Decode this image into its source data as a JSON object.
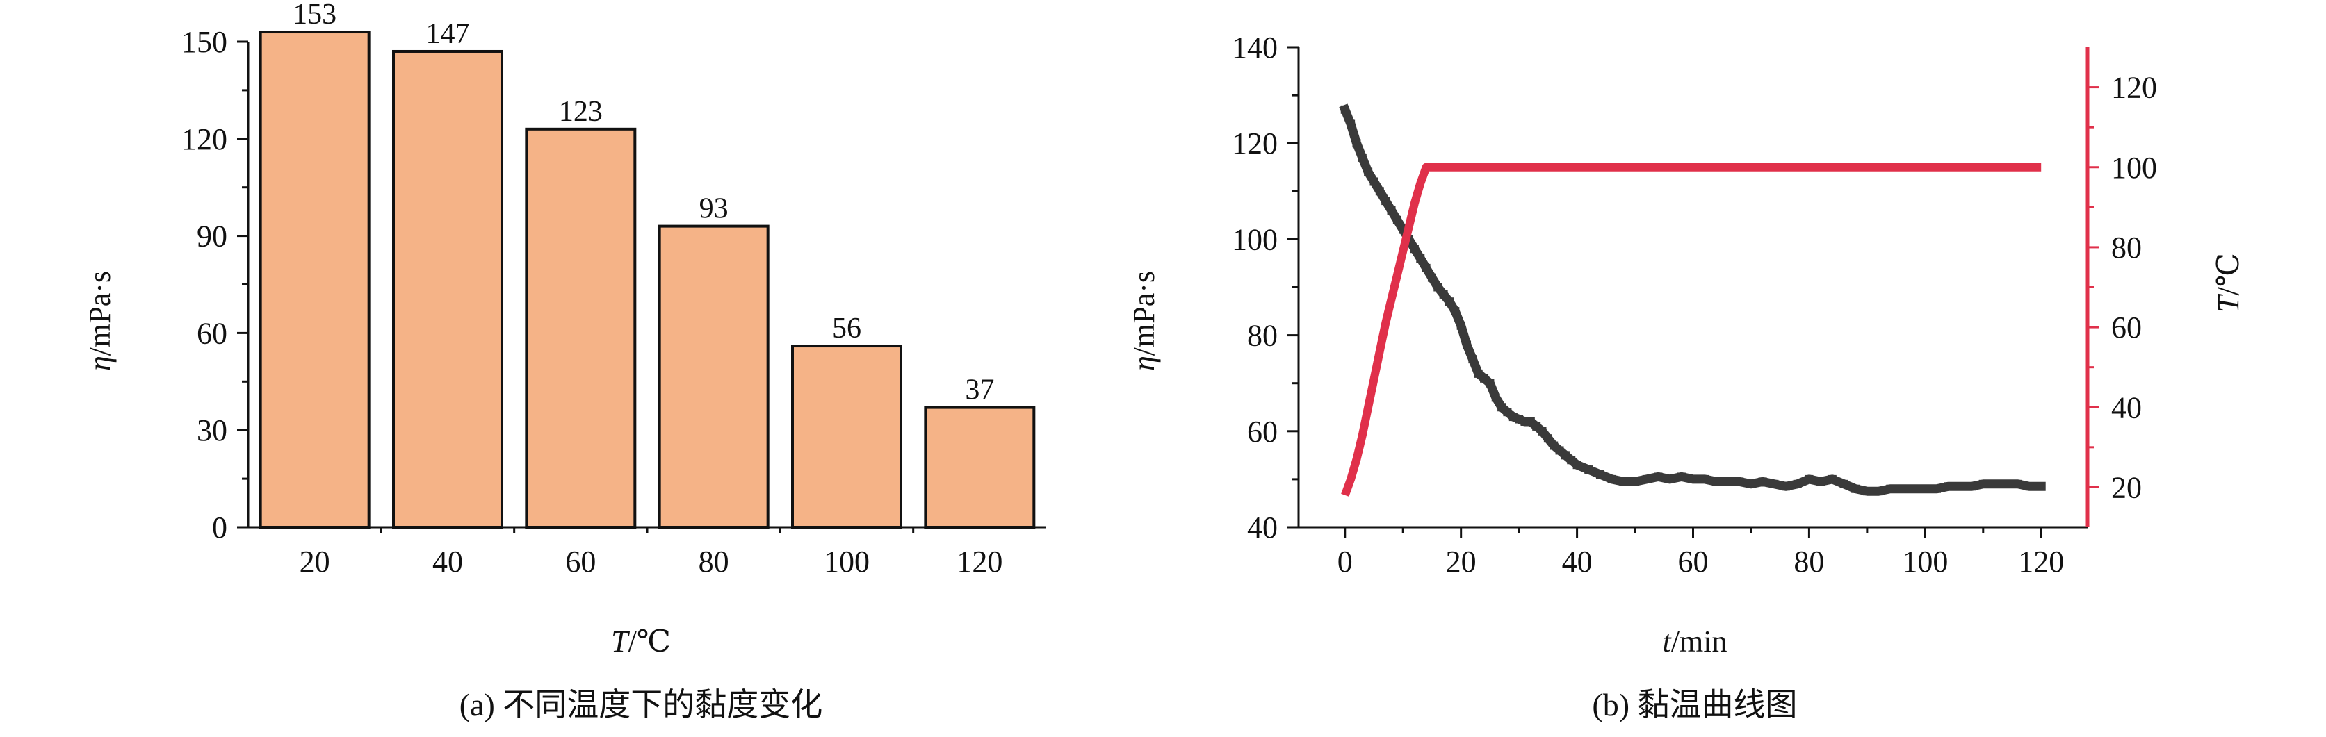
{
  "chart_data": [
    {
      "type": "bar",
      "caption": "(a) 不同温度下的黏度变化",
      "xlabel_var": "T",
      "xlabel_unit": "/℃",
      "ylabel_var": "η",
      "ylabel_unit": "/mPa·s",
      "categories": [
        "20",
        "40",
        "60",
        "80",
        "100",
        "120"
      ],
      "values": [
        153,
        147,
        123,
        93,
        56,
        37
      ],
      "data_labels": [
        "153",
        "147",
        "123",
        "93",
        "56",
        "37"
      ],
      "ylim": [
        0,
        150
      ],
      "yticks": [
        "0",
        "30",
        "60",
        "90",
        "120",
        "150"
      ],
      "grid": false,
      "bar_color": "#F5B387",
      "bar_edge_color": "#111111"
    },
    {
      "type": "line",
      "caption": "(b) 黏温曲线图",
      "xlabel_var": "t",
      "xlabel_unit": "/min",
      "ylabel_var": "η",
      "ylabel_unit": "/mPa·s",
      "y2label_var": "T",
      "y2label_unit": "/℃",
      "xlim": [
        -8,
        128
      ],
      "xticks": [
        "0",
        "20",
        "40",
        "60",
        "80",
        "100",
        "120"
      ],
      "ylim": [
        40,
        140
      ],
      "yticks": [
        "40",
        "60",
        "80",
        "100",
        "120",
        "140"
      ],
      "y2lim": [
        10,
        130
      ],
      "y2ticks": [
        "20",
        "40",
        "60",
        "80",
        "100",
        "120"
      ],
      "grid": false,
      "series": [
        {
          "axis": "left",
          "color": "#3A3A3A",
          "x": [
            0,
            1,
            2,
            3,
            4,
            5,
            6,
            7,
            8,
            9,
            10,
            11,
            12,
            13,
            14,
            15,
            16,
            17,
            18,
            19,
            20,
            21,
            22,
            23,
            24,
            25,
            26,
            27,
            28,
            29,
            30,
            31,
            32,
            33,
            34,
            35,
            36,
            37,
            38,
            39,
            40,
            42,
            44,
            46,
            48,
            50,
            52,
            54,
            56,
            58,
            60,
            62,
            64,
            66,
            68,
            70,
            72,
            74,
            76,
            78,
            80,
            82,
            84,
            86,
            88,
            90,
            92,
            94,
            96,
            98,
            100,
            102,
            104,
            106,
            108,
            110,
            112,
            114,
            116,
            118,
            120
          ],
          "y": [
            127,
            124,
            120,
            117,
            114,
            112,
            110,
            108,
            106,
            104,
            102,
            100,
            98,
            96,
            94,
            92,
            90,
            88.5,
            87,
            85,
            82,
            78,
            75,
            72,
            71,
            70,
            67,
            65,
            64,
            63,
            62.5,
            62,
            62,
            61,
            60,
            58.5,
            57,
            56,
            55,
            54,
            53,
            52,
            51,
            50,
            49.5,
            49.5,
            50,
            50.5,
            50,
            50.5,
            50,
            50,
            49.5,
            49.5,
            49.5,
            49,
            49.5,
            49,
            48.5,
            49,
            50,
            49.5,
            50,
            49,
            48,
            47.5,
            47.5,
            48,
            48,
            48,
            48,
            48,
            48.5,
            48.5,
            48.5,
            49,
            49,
            49,
            49,
            48.5,
            48.5
          ]
        },
        {
          "axis": "right",
          "color": "#E0304A",
          "x": [
            0,
            1,
            2,
            3,
            4,
            5,
            6,
            7,
            8,
            9,
            10,
            11,
            12,
            13,
            14,
            15,
            20,
            40,
            60,
            80,
            100,
            120
          ],
          "y": [
            18,
            22,
            27,
            33,
            40,
            47,
            54,
            61,
            67,
            73,
            79,
            85,
            91,
            96,
            100,
            100,
            100,
            100,
            100,
            100,
            100,
            100
          ]
        }
      ]
    }
  ]
}
